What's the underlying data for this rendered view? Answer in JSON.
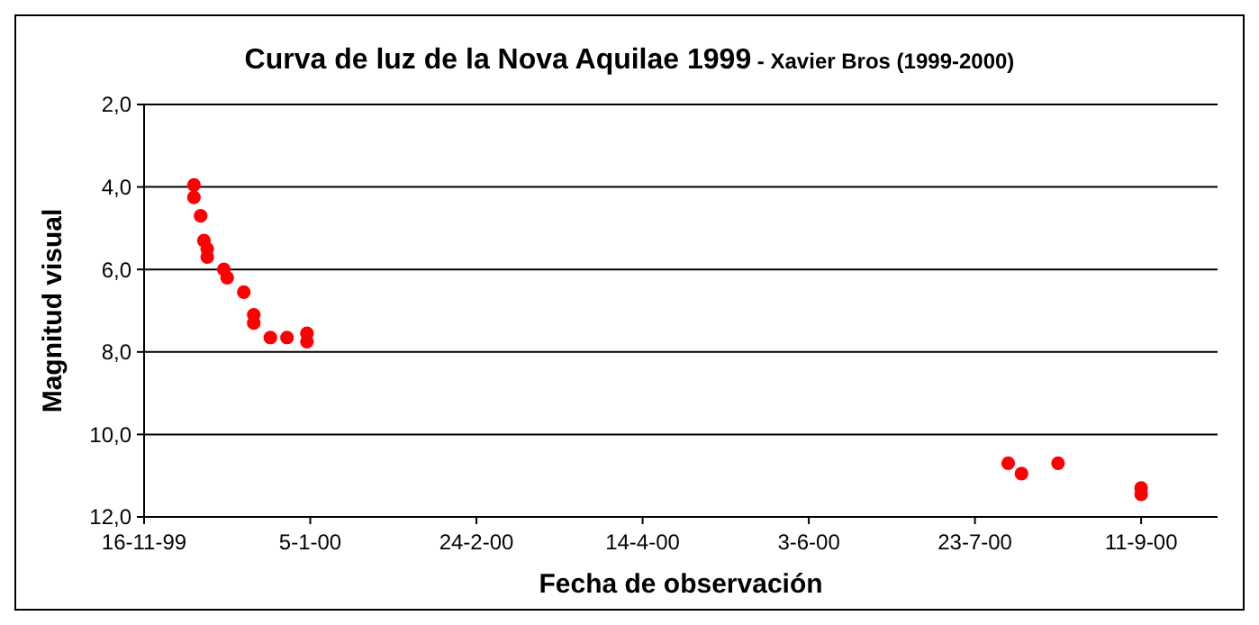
{
  "chart_data": {
    "type": "scatter",
    "title": "Curva de luz de la Nova Aquilae 1999",
    "subtitle": "- Xavier Bros (1999-2000)",
    "xlabel": "Fecha de observación",
    "ylabel": "Magnitud visual",
    "marker": "circle",
    "grid": "y",
    "xlim": [
      "1999-11-16",
      "2000-10-04"
    ],
    "xticks": [
      {
        "value": "1999-11-16",
        "label": "16-11-99"
      },
      {
        "value": "2000-01-05",
        "label": "5-1-00"
      },
      {
        "value": "2000-02-24",
        "label": "24-2-00"
      },
      {
        "value": "2000-04-14",
        "label": "14-4-00"
      },
      {
        "value": "2000-06-03",
        "label": "3-6-00"
      },
      {
        "value": "2000-07-23",
        "label": "23-7-00"
      },
      {
        "value": "2000-09-11",
        "label": "11-9-00"
      }
    ],
    "ylim": [
      12,
      2
    ],
    "yticks": [
      {
        "value": 2,
        "label": "2,0"
      },
      {
        "value": 4,
        "label": "4,0"
      },
      {
        "value": 6,
        "label": "6,0"
      },
      {
        "value": 8,
        "label": "8,0"
      },
      {
        "value": 10,
        "label": "10,0"
      },
      {
        "value": 12,
        "label": "12,0"
      }
    ],
    "series": [
      {
        "color": "#ff0000",
        "x": [
          "1999-12-01",
          "1999-12-01",
          "1999-12-03",
          "1999-12-04",
          "1999-12-05",
          "1999-12-05",
          "1999-12-10",
          "1999-12-11",
          "1999-12-16",
          "1999-12-19",
          "1999-12-19",
          "1999-12-24",
          "1999-12-29",
          "2000-01-04",
          "2000-01-04",
          "2000-08-02",
          "2000-08-06",
          "2000-08-17",
          "2000-09-11",
          "2000-09-11"
        ],
        "values": [
          3.95,
          4.25,
          4.7,
          5.3,
          5.5,
          5.7,
          6.0,
          6.2,
          6.55,
          7.1,
          7.3,
          7.65,
          7.65,
          7.55,
          7.75,
          10.7,
          10.95,
          10.7,
          11.3,
          11.45
        ]
      }
    ]
  }
}
